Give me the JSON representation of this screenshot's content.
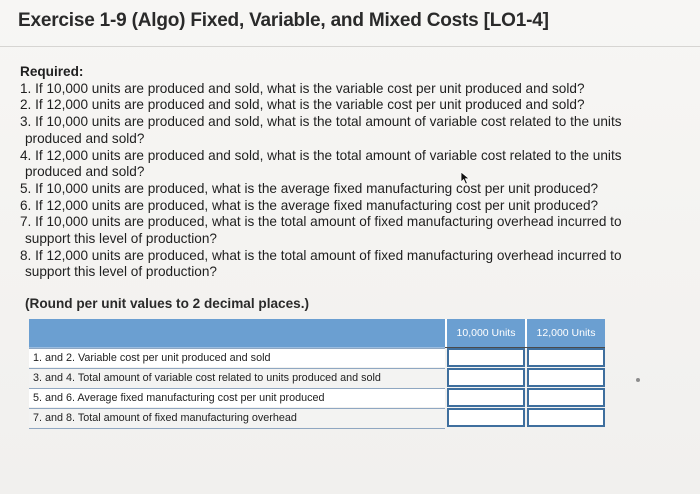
{
  "title": "Exercise 1-9 (Algo) Fixed, Variable, and Mixed Costs [LO1-4]",
  "required": {
    "heading": "Required:",
    "questions": [
      {
        "line1": "1. If 10,000 units are produced and sold, what is the variable cost per unit produced and sold?",
        "line2": ""
      },
      {
        "line1": "2. If 12,000 units are produced and sold, what is the variable cost per unit produced and sold?",
        "line2": ""
      },
      {
        "line1": "3. If 10,000 units are produced and sold, what is the total amount of variable cost related to the units",
        "line2": "produced and sold?"
      },
      {
        "line1": "4. If 12,000 units are produced and sold, what is the total amount of variable cost related to the units",
        "line2": "produced and sold?"
      },
      {
        "line1": "5. If 10,000 units are produced, what is the average fixed manufacturing cost per unit produced?",
        "line2": ""
      },
      {
        "line1": "6. If 12,000 units are produced, what is the average fixed manufacturing cost per unit produced?",
        "line2": ""
      },
      {
        "line1": "7. If 10,000 units are produced, what is the total amount of fixed manufacturing overhead incurred to",
        "line2": "support this level of production?"
      },
      {
        "line1": "8. If 12,000 units are produced, what is the total amount of fixed manufacturing overhead incurred to",
        "line2": "support this level of production?"
      }
    ]
  },
  "round_note": "(Round per unit values to 2 decimal places.)",
  "table": {
    "columns": [
      "10,000 Units",
      "12,000 Units"
    ],
    "rows": [
      {
        "label": "1. and 2. Variable cost per unit produced and sold",
        "values": [
          "",
          ""
        ]
      },
      {
        "label": "3. and 4. Total amount of variable cost related to units produced and sold",
        "values": [
          "",
          ""
        ]
      },
      {
        "label": "5. and 6. Average fixed manufacturing cost per unit produced",
        "values": [
          "",
          ""
        ]
      },
      {
        "label": "7. and 8. Total amount of fixed manufacturing overhead",
        "values": [
          "",
          ""
        ]
      }
    ]
  },
  "colors": {
    "header_blue": "#6b9fd1",
    "input_border": "#3f6f9e"
  },
  "icons": [
    "mouse-pointer-icon"
  ]
}
